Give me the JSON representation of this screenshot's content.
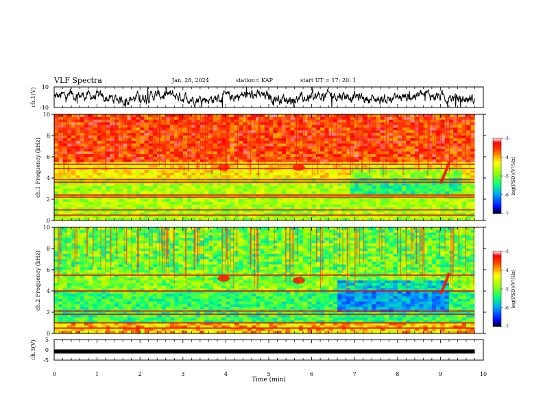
{
  "header": {
    "title": "VLF Spectra",
    "date": "Jan. 28, 2024",
    "station": "station= KAP",
    "start": "start  UT =   17: 20: 1"
  },
  "colorbar": {
    "label": "log(PSD)(V²/Hz)",
    "ticks": [
      "-3",
      "-4",
      "-5",
      "-6",
      "-7"
    ],
    "colors": [
      "#000000",
      "#0000ff",
      "#00c8ff",
      "#00ff80",
      "#80ff00",
      "#ffff00",
      "#ff8000",
      "#ff0000",
      "#ffffff"
    ]
  },
  "chart_data": [
    {
      "type": "line",
      "name": "ch1-waveform",
      "ylabel": "ch.1(V)",
      "ylim": [
        -10,
        10
      ],
      "yticks": [
        "10",
        "-10"
      ],
      "xlim": [
        0,
        10
      ],
      "description_values": "noisy waveform roughly between -8 and 8 V across 0 to 9.8 min"
    },
    {
      "type": "heatmap",
      "name": "ch1-spectrogram",
      "ylabel": "ch.1 Frequency (kHz)",
      "ylim": [
        0,
        10
      ],
      "yticks": [
        "0",
        "2",
        "4",
        "6",
        "8",
        "10"
      ],
      "xlim": [
        0,
        9.8
      ],
      "colorbar_range": [
        -7,
        -3
      ],
      "horizontal_lines_khz": [
        0.5,
        1.0,
        2.2,
        2.4,
        3.6,
        3.85,
        4.9,
        5.3
      ],
      "features": [
        {
          "x_min": 3.95,
          "freq_khz": 5.0,
          "kind": "blob"
        },
        {
          "x_min": 5.7,
          "freq_khz": 5.0,
          "kind": "blob"
        },
        {
          "x_min": 9.1,
          "freq_khz": 4.3,
          "kind": "riser"
        }
      ]
    },
    {
      "type": "heatmap",
      "name": "ch2-spectrogram",
      "ylabel": "ch.2 Frequency (kHz)",
      "ylim": [
        0,
        10
      ],
      "yticks": [
        "0",
        "2",
        "4",
        "6",
        "8",
        "10"
      ],
      "xlim": [
        0,
        9.8
      ],
      "colorbar_range": [
        -7,
        -3
      ],
      "horizontal_lines_khz": [
        0.5,
        1.0,
        1.8,
        2.1,
        4.0,
        5.5
      ],
      "features": [
        {
          "x_min": 3.95,
          "freq_khz": 5.2,
          "kind": "blob"
        },
        {
          "x_min": 5.7,
          "freq_khz": 5.0,
          "kind": "blob"
        },
        {
          "x_min": 9.1,
          "freq_khz": 4.5,
          "kind": "riser"
        }
      ]
    },
    {
      "type": "line",
      "name": "ch3-waveform",
      "ylabel": "ch.3(V)",
      "ylim": [
        -5,
        5
      ],
      "yticks": [
        "5",
        "0",
        "-5"
      ],
      "xlim": [
        0,
        10
      ],
      "level_volts": -0.8
    }
  ],
  "xaxis": {
    "label": "Time (min)",
    "ticks": [
      "0",
      "1",
      "2",
      "3",
      "4",
      "5",
      "6",
      "7",
      "8",
      "9",
      "10"
    ]
  }
}
